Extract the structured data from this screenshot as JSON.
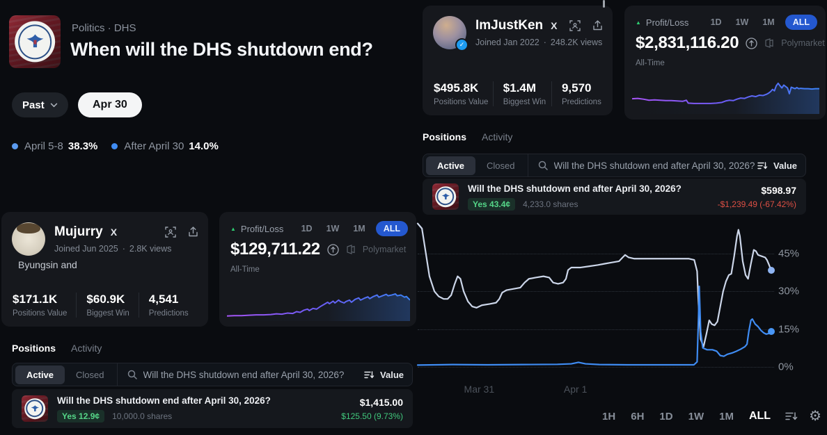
{
  "market": {
    "breadcrumb": "Politics · DHS",
    "title": "When will the DHS shutdown end?",
    "past_button": "Past",
    "date_pill": "Apr 30",
    "legend": [
      {
        "label": "April 5-8",
        "value": "38.3%",
        "color": "#5b9bf0"
      },
      {
        "label": "After April 30",
        "value": "14.0%",
        "color": "#3f8cf3"
      }
    ]
  },
  "ken": {
    "name": "ImJustKen",
    "x_handle": "X",
    "joined": "Joined Jan 2022",
    "meta_sep": "·",
    "views": "248.2K views",
    "stats": [
      {
        "value": "$495.8K",
        "label": "Positions Value"
      },
      {
        "value": "$1.4M",
        "label": "Biggest Win"
      },
      {
        "value": "9,570",
        "label": "Predictions"
      }
    ],
    "pnl": {
      "label": "Profit/Loss",
      "tabs": [
        "1D",
        "1W",
        "1M"
      ],
      "active_tab": "ALL",
      "value": "$2,831,116.20",
      "range": "All-Time",
      "watermark": "Polymarket",
      "spark": {
        "gradient": [
          "#a855f7",
          "#6b5cf6",
          "#3b82f6"
        ],
        "points": [
          [
            0,
            42
          ],
          [
            3,
            43
          ],
          [
            6,
            41
          ],
          [
            9,
            38
          ],
          [
            12,
            39
          ],
          [
            15,
            38
          ],
          [
            18,
            37
          ],
          [
            21,
            37
          ],
          [
            24,
            36
          ],
          [
            27,
            35
          ],
          [
            29,
            38
          ],
          [
            30,
            30
          ],
          [
            33,
            29
          ],
          [
            36,
            29
          ],
          [
            39,
            29
          ],
          [
            42,
            29
          ],
          [
            45,
            30
          ],
          [
            48,
            32
          ],
          [
            50,
            36
          ],
          [
            52,
            38
          ],
          [
            54,
            37
          ],
          [
            56,
            41
          ],
          [
            58,
            44
          ],
          [
            60,
            43
          ],
          [
            62,
            47
          ],
          [
            64,
            50
          ],
          [
            66,
            48
          ],
          [
            68,
            52
          ],
          [
            70,
            51
          ],
          [
            72,
            55
          ],
          [
            73,
            58
          ],
          [
            74,
            62
          ],
          [
            75,
            68
          ],
          [
            76,
            64
          ],
          [
            77,
            78
          ],
          [
            78,
            85
          ],
          [
            79,
            78
          ],
          [
            80,
            72
          ],
          [
            81,
            80
          ],
          [
            82,
            76
          ],
          [
            83,
            72
          ],
          [
            84,
            56
          ],
          [
            85,
            74
          ],
          [
            86,
            72
          ],
          [
            87,
            70
          ],
          [
            88,
            73
          ],
          [
            89,
            70
          ],
          [
            90,
            71
          ],
          [
            92,
            70
          ],
          [
            94,
            70
          ],
          [
            96,
            69
          ],
          [
            98,
            70
          ],
          [
            100,
            70
          ]
        ]
      }
    },
    "sections": {
      "positions": "Positions",
      "activity": "Activity"
    },
    "filter": {
      "active": "Active",
      "closed": "Closed",
      "query": "Will the DHS shutdown end after April 30, 2026?",
      "sort": "Value"
    },
    "row": {
      "title": "Will the DHS shutdown end after April 30, 2026?",
      "outcome": "Yes 43.4¢",
      "shares": "4,233.0 shares",
      "value": "$598.97",
      "change": "-$1,239.49 (-67.42%)"
    }
  },
  "mujurry": {
    "name": "Mujurry",
    "x_handle": "X",
    "joined": "Joined Jun 2025",
    "meta_sep": "·",
    "views": "2.8K views",
    "bio": "Byungsin and",
    "stats": [
      {
        "value": "$171.1K",
        "label": "Positions Value"
      },
      {
        "value": "$60.9K",
        "label": "Biggest Win"
      },
      {
        "value": "4,541",
        "label": "Predictions"
      }
    ],
    "pnl": {
      "label": "Profit/Loss",
      "tabs": [
        "1D",
        "1W",
        "1M"
      ],
      "active_tab": "ALL",
      "value": "$129,711.22",
      "range": "All-Time",
      "watermark": "Polymarket",
      "spark": {
        "gradient": [
          "#a855f7",
          "#6b5cf6",
          "#3b82f6"
        ],
        "points": [
          [
            0,
            14
          ],
          [
            4,
            15
          ],
          [
            8,
            15
          ],
          [
            12,
            16
          ],
          [
            16,
            17
          ],
          [
            20,
            17
          ],
          [
            24,
            18
          ],
          [
            27,
            20
          ],
          [
            30,
            19
          ],
          [
            33,
            22
          ],
          [
            36,
            21
          ],
          [
            38,
            26
          ],
          [
            40,
            24
          ],
          [
            42,
            30
          ],
          [
            44,
            33
          ],
          [
            45,
            29
          ],
          [
            47,
            35
          ],
          [
            49,
            33
          ],
          [
            51,
            40
          ],
          [
            53,
            46
          ],
          [
            55,
            52
          ],
          [
            56,
            48
          ],
          [
            58,
            55
          ],
          [
            59,
            50
          ],
          [
            61,
            58
          ],
          [
            62,
            54
          ],
          [
            64,
            50
          ],
          [
            65,
            54
          ],
          [
            67,
            58
          ],
          [
            68,
            52
          ],
          [
            70,
            60
          ],
          [
            72,
            64
          ],
          [
            73,
            58
          ],
          [
            75,
            63
          ],
          [
            77,
            67
          ],
          [
            78,
            62
          ],
          [
            80,
            68
          ],
          [
            82,
            72
          ],
          [
            83,
            66
          ],
          [
            85,
            70
          ],
          [
            87,
            74
          ],
          [
            88,
            70
          ],
          [
            90,
            72
          ],
          [
            92,
            75
          ],
          [
            93,
            70
          ],
          [
            95,
            72
          ],
          [
            97,
            66
          ],
          [
            98,
            68
          ],
          [
            100,
            58
          ]
        ]
      }
    },
    "sections": {
      "positions": "Positions",
      "activity": "Activity"
    },
    "filter": {
      "active": "Active",
      "closed": "Closed",
      "query": "Will the DHS shutdown end after April 30, 2026?",
      "sort": "Value"
    },
    "row": {
      "title": "Will the DHS shutdown end after April 30, 2026?",
      "outcome": "Yes 12.9¢",
      "shares": "10,000.0 shares",
      "value": "$1,415.00",
      "change": "$125.50 (9.73%)"
    }
  },
  "chart_data": {
    "type": "line",
    "title": "When will the DHS shutdown end?",
    "ylim": [
      -5,
      58
    ],
    "grid": "dotted",
    "legend_position": "top-left",
    "yticks": [
      {
        "pct": 0,
        "label": "0%"
      },
      {
        "pct": 15,
        "label": "15%"
      },
      {
        "pct": 30,
        "label": "30%"
      },
      {
        "pct": 45,
        "label": "45%"
      }
    ],
    "xticks": [
      {
        "x": 13,
        "label": "Mar 31"
      },
      {
        "x": 41,
        "label": "Apr 1"
      }
    ],
    "series": [
      {
        "name": "April 5-8",
        "end_value": 38.3,
        "color": "#ccd6e9",
        "dot": "#8fb4f2",
        "points": [
          [
            0,
            57
          ],
          [
            1.2,
            55
          ],
          [
            2.2,
            46
          ],
          [
            3.3,
            36
          ],
          [
            4.7,
            30
          ],
          [
            5.9,
            28
          ],
          [
            7.3,
            27
          ],
          [
            8.4,
            27
          ],
          [
            9.4,
            28.5
          ],
          [
            10.4,
            33
          ],
          [
            11.2,
            36
          ],
          [
            12,
            35
          ],
          [
            12.9,
            30
          ],
          [
            14.1,
            26
          ],
          [
            15.3,
            24
          ],
          [
            16.5,
            23.5
          ],
          [
            18,
            24.5
          ],
          [
            20.2,
            25
          ],
          [
            22,
            25.5
          ],
          [
            22.9,
            27
          ],
          [
            23.7,
            29.5
          ],
          [
            24.9,
            30.5
          ],
          [
            26.9,
            31
          ],
          [
            28.8,
            31.5
          ],
          [
            30,
            33.5
          ],
          [
            31.2,
            35
          ],
          [
            33.1,
            35.5
          ],
          [
            35.3,
            36
          ],
          [
            36.9,
            35.5
          ],
          [
            38,
            33.5
          ],
          [
            39.4,
            33
          ],
          [
            40.8,
            33.5
          ],
          [
            41.6,
            35
          ],
          [
            42.2,
            38.5
          ],
          [
            43.1,
            39.5
          ],
          [
            45.7,
            39.5
          ],
          [
            48.2,
            40
          ],
          [
            50.6,
            40.5
          ],
          [
            52.5,
            41
          ],
          [
            54.5,
            41.5
          ],
          [
            56.5,
            42
          ],
          [
            57.5,
            43.5
          ],
          [
            58.2,
            44.5
          ],
          [
            59.2,
            43.5
          ],
          [
            60.8,
            43
          ],
          [
            64.7,
            43
          ],
          [
            68.6,
            43
          ],
          [
            72.5,
            43
          ],
          [
            76.1,
            43
          ],
          [
            77.6,
            42.5
          ],
          [
            78.4,
            38
          ],
          [
            78.8,
            25
          ],
          [
            79.4,
            11
          ],
          [
            80.2,
            8
          ],
          [
            81,
            13
          ],
          [
            81.8,
            18.5
          ],
          [
            82.5,
            17
          ],
          [
            83.3,
            16.5
          ],
          [
            84.1,
            18
          ],
          [
            84.9,
            24
          ],
          [
            85.7,
            30
          ],
          [
            86.5,
            34
          ],
          [
            87.3,
            36.5
          ],
          [
            88,
            37
          ],
          [
            88.8,
            44
          ],
          [
            89.6,
            52
          ],
          [
            90,
            54.5
          ],
          [
            90.4,
            52
          ],
          [
            91.2,
            42
          ],
          [
            92,
            36.5
          ],
          [
            92.7,
            35
          ],
          [
            93.5,
            41
          ],
          [
            94.3,
            46.5
          ],
          [
            94.9,
            46
          ],
          [
            95.5,
            44.5
          ],
          [
            96.5,
            44
          ],
          [
            97.5,
            43.5
          ],
          [
            98,
            42.5
          ],
          [
            98.6,
            40.5
          ],
          [
            99.2,
            38.3
          ]
        ]
      },
      {
        "name": "After April 30",
        "end_value": 14.0,
        "color": "#3f8cf3",
        "dot": "#4896f5",
        "points": [
          [
            0,
            0.7
          ],
          [
            9.8,
            0.9
          ],
          [
            19.6,
            0.8
          ],
          [
            29.4,
            0.9
          ],
          [
            39.2,
            1
          ],
          [
            43.1,
            1.2
          ],
          [
            45.1,
            1.8
          ],
          [
            47.1,
            1.2
          ],
          [
            51,
            0.9
          ],
          [
            58.8,
            0.8
          ],
          [
            68.6,
            0.8
          ],
          [
            77.5,
            0.8
          ],
          [
            78.4,
            2
          ],
          [
            78.8,
            20
          ],
          [
            79,
            32
          ],
          [
            79.4,
            14
          ],
          [
            80,
            7.5
          ],
          [
            81.2,
            6.8
          ],
          [
            82.7,
            6.8
          ],
          [
            83.9,
            6.2
          ],
          [
            84.9,
            4.5
          ],
          [
            85.9,
            4.2
          ],
          [
            86.9,
            5
          ],
          [
            88.2,
            5.5
          ],
          [
            89.4,
            6.2
          ],
          [
            90.6,
            7
          ],
          [
            91.8,
            8
          ],
          [
            92.4,
            9
          ],
          [
            92.9,
            14
          ],
          [
            93.5,
            18.5
          ],
          [
            93.9,
            19
          ],
          [
            94.7,
            17
          ],
          [
            95.5,
            16
          ],
          [
            96.3,
            14.5
          ],
          [
            97.1,
            13.5
          ],
          [
            97.8,
            13
          ],
          [
            98.6,
            13.3
          ],
          [
            99.2,
            14
          ]
        ]
      }
    ],
    "timeframes": [
      "1H",
      "6H",
      "1D",
      "1W",
      "1M",
      "ALL"
    ],
    "active_timeframe": "ALL"
  }
}
